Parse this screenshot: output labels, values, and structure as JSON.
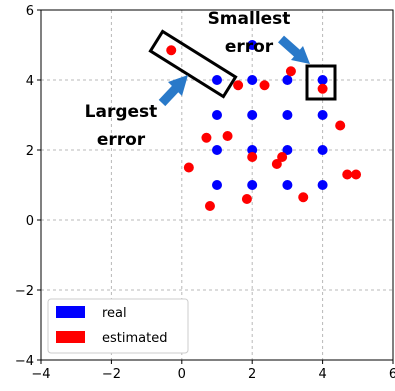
{
  "chart_data": {
    "type": "scatter",
    "xlim": [
      -4,
      6
    ],
    "ylim": [
      -4,
      6
    ],
    "x_ticks": [
      "−4",
      "−2",
      "0",
      "2",
      "4",
      "6"
    ],
    "y_ticks": [
      "−4",
      "−2",
      "0",
      "2",
      "4",
      "6"
    ],
    "grid": true,
    "legend_position": "lower-left",
    "series": [
      {
        "name": "real",
        "color": "#0000ff",
        "points": [
          [
            2,
            5
          ],
          [
            1,
            4
          ],
          [
            2,
            4
          ],
          [
            3,
            4
          ],
          [
            4,
            4
          ],
          [
            1,
            3
          ],
          [
            2,
            3
          ],
          [
            3,
            3
          ],
          [
            4,
            3
          ],
          [
            1,
            2
          ],
          [
            2,
            2
          ],
          [
            3,
            2
          ],
          [
            4,
            2
          ],
          [
            1,
            1
          ],
          [
            2,
            1
          ],
          [
            3,
            1
          ],
          [
            4,
            1
          ]
        ]
      },
      {
        "name": "estimated",
        "color": "#ff0000",
        "points": [
          [
            -0.3,
            4.85
          ],
          [
            1.6,
            3.85
          ],
          [
            2.35,
            3.85
          ],
          [
            4.0,
            3.75
          ],
          [
            3.1,
            4.25
          ],
          [
            1.3,
            2.4
          ],
          [
            0.7,
            2.35
          ],
          [
            4.5,
            2.7
          ],
          [
            2.0,
            1.8
          ],
          [
            2.85,
            1.8
          ],
          [
            2.7,
            1.6
          ],
          [
            0.2,
            1.5
          ],
          [
            4.7,
            1.3
          ],
          [
            4.95,
            1.3
          ],
          [
            1.85,
            0.6
          ],
          [
            3.45,
            0.65
          ],
          [
            0.8,
            0.4
          ]
        ]
      }
    ],
    "annotations": [
      {
        "id": "smallest",
        "lines": [
          "Smallest",
          "error"
        ]
      },
      {
        "id": "largest",
        "lines": [
          "Largest",
          "error"
        ]
      }
    ]
  }
}
